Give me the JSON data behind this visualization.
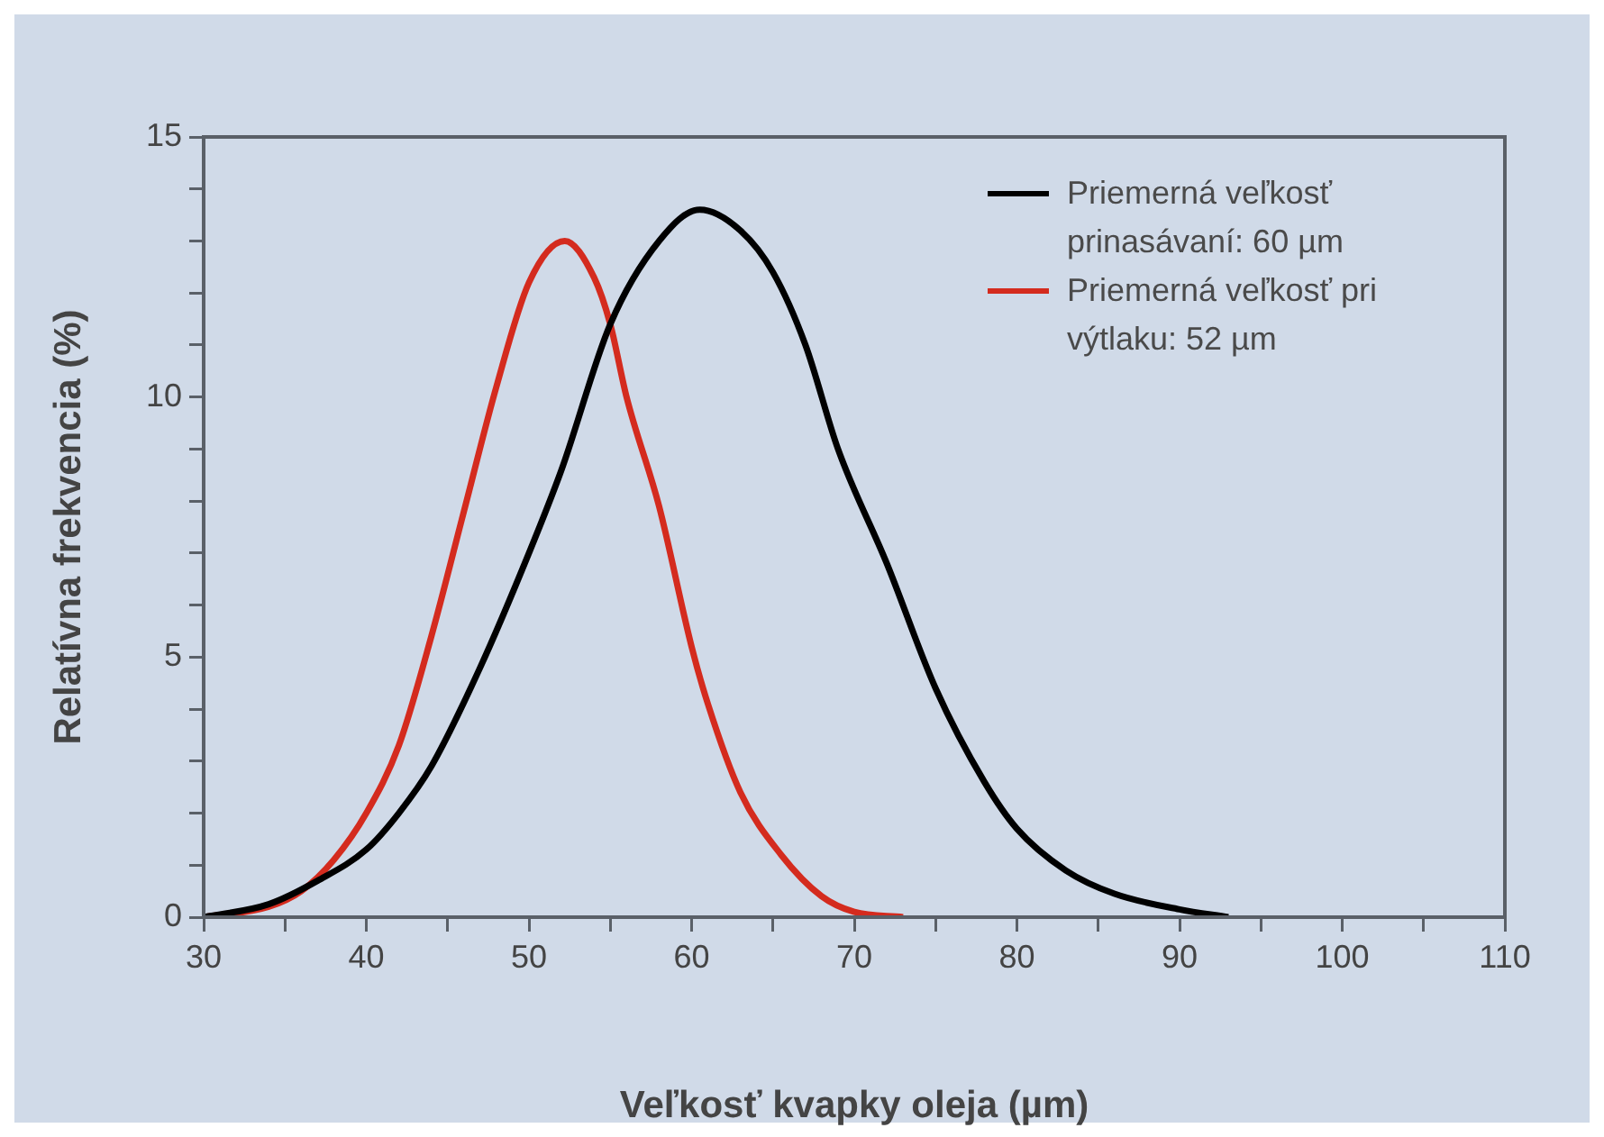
{
  "chart_data": {
    "type": "line",
    "xlabel": "Veľkosť kvapky oleja (µm)",
    "ylabel": "Relatívna frekvencia (%)",
    "xlim": [
      30,
      110
    ],
    "xticks": [
      30,
      {
        "value": 35,
        "label": null
      },
      40,
      {
        "value": 45,
        "label": null
      },
      50,
      {
        "value": 55,
        "label": null
      },
      60,
      {
        "value": 65,
        "label": null
      },
      70,
      {
        "value": 75,
        "label": null
      },
      80,
      {
        "value": 85,
        "label": null
      },
      90,
      {
        "value": 95,
        "label": null
      },
      100,
      {
        "value": 105,
        "label": null
      },
      110
    ],
    "ylim": [
      0,
      15
    ],
    "yticks": [
      0,
      {
        "value": 1,
        "label": null
      },
      {
        "value": 2,
        "label": null
      },
      {
        "value": 3,
        "label": null
      },
      {
        "value": 4,
        "label": null
      },
      5,
      {
        "value": 6,
        "label": null
      },
      {
        "value": 7,
        "label": null
      },
      {
        "value": 8,
        "label": null
      },
      {
        "value": 9,
        "label": null
      },
      10,
      {
        "value": 11,
        "label": null
      },
      {
        "value": 12,
        "label": null
      },
      {
        "value": 13,
        "label": null
      },
      {
        "value": 14,
        "label": null
      },
      15
    ],
    "grid": false,
    "legend": "top right",
    "marker": "none",
    "line_style": "solid",
    "series": [
      {
        "name": "Priemerná veľkosť prinasávaní: 60 µm",
        "color": "#000000",
        "x": [
          30,
          34,
          37,
          40,
          42,
          44,
          47,
          50,
          52,
          55,
          58,
          60.5,
          63,
          65,
          67,
          69,
          72,
          75,
          78,
          80,
          83,
          86,
          90,
          93
        ],
        "values": [
          0,
          0.25,
          0.7,
          1.3,
          2.0,
          2.9,
          4.8,
          7.0,
          8.6,
          11.4,
          13.0,
          13.6,
          13.2,
          12.4,
          11.0,
          9.0,
          6.8,
          4.4,
          2.6,
          1.7,
          0.9,
          0.45,
          0.15,
          0
        ]
      },
      {
        "name": "Priemerná veľkosť pri výtlaku: 52 µm",
        "color": "#d42b1e",
        "x": [
          30,
          34,
          36,
          38,
          40,
          42,
          44,
          46,
          48,
          50,
          52.2,
          54,
          55,
          56,
          58,
          60,
          61,
          63,
          65.5,
          68,
          70,
          73
        ],
        "values": [
          0,
          0.2,
          0.5,
          1.1,
          2.0,
          3.3,
          5.4,
          7.8,
          10.2,
          12.2,
          13.0,
          12.3,
          11.4,
          10.0,
          7.9,
          5.2,
          4.1,
          2.4,
          1.2,
          0.4,
          0.1,
          0
        ]
      }
    ]
  }
}
